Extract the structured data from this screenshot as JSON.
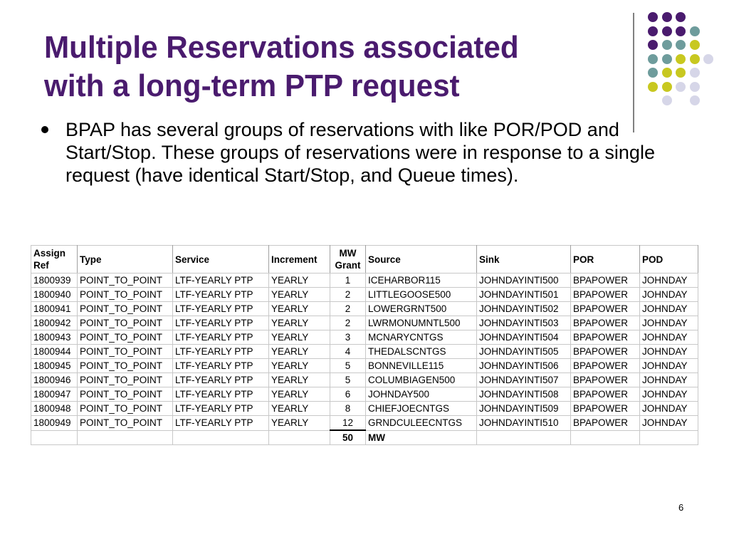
{
  "slide": {
    "title_line1": "Multiple Reservations associated",
    "title_line2": "with a long-term PTP request",
    "bullet": "BPAP has several groups of reservations with like POR/POD and Start/Stop.  These groups of reservations were in response to a single request (have identical Start/Stop, and Queue times).",
    "page_number": "6",
    "accent_color": "#4a1b6e"
  },
  "decoration": {
    "colors": {
      "purple": "#4a1b6e",
      "teal": "#6e9c9c",
      "olive": "#c8c820",
      "lavender": "#d6d6e8"
    },
    "grid": [
      [
        "purple",
        "purple",
        "purple",
        ""
      ],
      [
        "purple",
        "purple",
        "purple",
        "teal"
      ],
      [
        "purple",
        "teal",
        "teal",
        "olive"
      ],
      [
        "teal",
        "teal",
        "olive",
        "olive",
        "lavender"
      ],
      [
        "teal",
        "olive",
        "olive",
        "lavender"
      ],
      [
        "olive",
        "olive",
        "lavender",
        "lavender"
      ],
      [
        "",
        "lavender",
        "",
        "lavender"
      ]
    ]
  },
  "table": {
    "headers": {
      "assign_ref": "Assign Ref",
      "type": "Type",
      "service": "Service",
      "increment": "Increment",
      "mw_grant": "MW Grant",
      "source": "Source",
      "sink": "Sink",
      "por": "POR",
      "pod": "POD"
    },
    "rows": [
      {
        "assign_ref": "1800939",
        "type": "POINT_TO_POINT",
        "service": "LTF-YEARLY PTP",
        "increment": "YEARLY",
        "mw": "1",
        "source": "ICEHARBOR115",
        "sink": "JOHNDAYINTI500",
        "por": "BPAPOWER",
        "pod": "JOHNDAY"
      },
      {
        "assign_ref": "1800940",
        "type": "POINT_TO_POINT",
        "service": "LTF-YEARLY PTP",
        "increment": "YEARLY",
        "mw": "2",
        "source": "LITTLEGOOSE500",
        "sink": "JOHNDAYINTI501",
        "por": "BPAPOWER",
        "pod": "JOHNDAY"
      },
      {
        "assign_ref": "1800941",
        "type": "POINT_TO_POINT",
        "service": "LTF-YEARLY PTP",
        "increment": "YEARLY",
        "mw": "2",
        "source": "LOWERGRNT500",
        "sink": "JOHNDAYINTI502",
        "por": "BPAPOWER",
        "pod": "JOHNDAY"
      },
      {
        "assign_ref": "1800942",
        "type": "POINT_TO_POINT",
        "service": "LTF-YEARLY PTP",
        "increment": "YEARLY",
        "mw": "2",
        "source": "LWRMONUMNTL500",
        "sink": "JOHNDAYINTI503",
        "por": "BPAPOWER",
        "pod": "JOHNDAY"
      },
      {
        "assign_ref": "1800943",
        "type": "POINT_TO_POINT",
        "service": "LTF-YEARLY PTP",
        "increment": "YEARLY",
        "mw": "3",
        "source": "MCNARYCNTGS",
        "sink": "JOHNDAYINTI504",
        "por": "BPAPOWER",
        "pod": "JOHNDAY"
      },
      {
        "assign_ref": "1800944",
        "type": "POINT_TO_POINT",
        "service": "LTF-YEARLY PTP",
        "increment": "YEARLY",
        "mw": "4",
        "source": "THEDALSCNTGS",
        "sink": "JOHNDAYINTI505",
        "por": "BPAPOWER",
        "pod": "JOHNDAY"
      },
      {
        "assign_ref": "1800945",
        "type": "POINT_TO_POINT",
        "service": "LTF-YEARLY PTP",
        "increment": "YEARLY",
        "mw": "5",
        "source": "BONNEVILLE115",
        "sink": "JOHNDAYINTI506",
        "por": "BPAPOWER",
        "pod": "JOHNDAY"
      },
      {
        "assign_ref": "1800946",
        "type": "POINT_TO_POINT",
        "service": "LTF-YEARLY PTP",
        "increment": "YEARLY",
        "mw": "5",
        "source": "COLUMBIAGEN500",
        "sink": "JOHNDAYINTI507",
        "por": "BPAPOWER",
        "pod": "JOHNDAY"
      },
      {
        "assign_ref": "1800947",
        "type": "POINT_TO_POINT",
        "service": "LTF-YEARLY PTP",
        "increment": "YEARLY",
        "mw": "6",
        "source": "JOHNDAY500",
        "sink": "JOHNDAYINTI508",
        "por": "BPAPOWER",
        "pod": "JOHNDAY"
      },
      {
        "assign_ref": "1800948",
        "type": "POINT_TO_POINT",
        "service": "LTF-YEARLY PTP",
        "increment": "YEARLY",
        "mw": "8",
        "source": "CHIEFJOECNTGS",
        "sink": "JOHNDAYINTI509",
        "por": "BPAPOWER",
        "pod": "JOHNDAY"
      },
      {
        "assign_ref": "1800949",
        "type": "POINT_TO_POINT",
        "service": "LTF-YEARLY PTP",
        "increment": "YEARLY",
        "mw": "12",
        "source": "GRNDCULEECNTGS",
        "sink": "JOHNDAYINTI510",
        "por": "BPAPOWER",
        "pod": "JOHNDAY"
      }
    ],
    "total": {
      "value": "50",
      "unit": "MW"
    }
  }
}
